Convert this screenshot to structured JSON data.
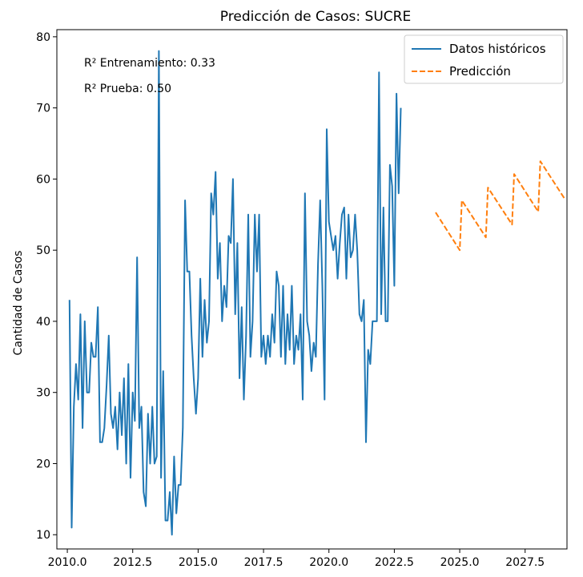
{
  "chart_data": {
    "type": "line",
    "title": "Predicción de Casos: SUCRE",
    "xlabel": "",
    "ylabel": "Cantidad de Casos",
    "xlim": [
      2009.6,
      2029.1
    ],
    "ylim": [
      8,
      81
    ],
    "x_ticks": [
      2010.0,
      2012.5,
      2015.0,
      2017.5,
      2020.0,
      2022.5,
      2025.0,
      2027.5
    ],
    "x_tick_labels": [
      "2010.0",
      "2012.5",
      "2015.0",
      "2017.5",
      "2020.0",
      "2022.5",
      "2025.0",
      "2027.5"
    ],
    "y_ticks": [
      10,
      20,
      30,
      40,
      50,
      60,
      70,
      80
    ],
    "y_tick_labels": [
      "10",
      "20",
      "30",
      "40",
      "50",
      "60",
      "70",
      "80"
    ],
    "grid": false,
    "legend_position": "top-right",
    "annotations": [
      "R² Entrenamiento: 0.33",
      "R² Prueba: 0.50"
    ],
    "series": [
      {
        "name": "Datos históricos",
        "color": "#1f77b4",
        "style": "solid",
        "x_start": 2010.083,
        "x_step": 0.08333,
        "values": [
          43,
          11,
          28,
          34,
          29,
          41,
          25,
          40,
          30,
          30,
          37,
          35,
          35,
          42,
          23,
          23,
          25,
          31,
          38,
          27,
          25,
          28,
          22,
          30,
          24,
          32,
          20,
          34,
          18,
          30,
          26,
          49,
          25,
          28,
          16,
          14,
          27,
          20,
          28,
          20,
          21,
          78,
          18,
          33,
          12,
          12,
          16,
          10,
          21,
          13,
          17,
          17,
          25,
          57,
          47,
          47,
          38,
          32,
          27,
          32,
          46,
          35,
          43,
          37,
          40,
          58,
          55,
          61,
          46,
          51,
          40,
          45,
          42,
          52,
          51,
          60,
          41,
          51,
          32,
          42,
          29,
          38,
          55,
          35,
          40,
          55,
          47,
          55,
          35,
          38,
          34,
          38,
          35,
          41,
          37,
          47,
          45,
          35,
          45,
          34,
          41,
          36,
          45,
          34,
          38,
          36,
          41,
          29,
          58,
          40,
          38,
          33,
          37,
          35,
          48,
          57,
          45,
          29,
          67,
          54,
          52,
          50,
          52,
          46,
          51,
          55,
          56,
          46,
          55,
          49,
          50,
          55,
          50,
          41,
          40,
          43,
          23,
          36,
          34,
          40,
          40,
          40,
          75,
          41,
          56,
          40,
          40,
          62,
          59,
          45,
          72,
          58,
          70
        ]
      },
      {
        "name": "Predicción",
        "color": "#ff7f0e",
        "style": "dashed",
        "points": [
          [
            2024.08,
            55.3
          ],
          [
            2025.0,
            50.0
          ],
          [
            2025.08,
            57.0
          ],
          [
            2026.0,
            51.8
          ],
          [
            2026.08,
            58.8
          ],
          [
            2027.0,
            53.6
          ],
          [
            2027.08,
            60.7
          ],
          [
            2028.0,
            55.4
          ],
          [
            2028.08,
            62.5
          ],
          [
            2029.0,
            57.3
          ]
        ]
      }
    ]
  }
}
